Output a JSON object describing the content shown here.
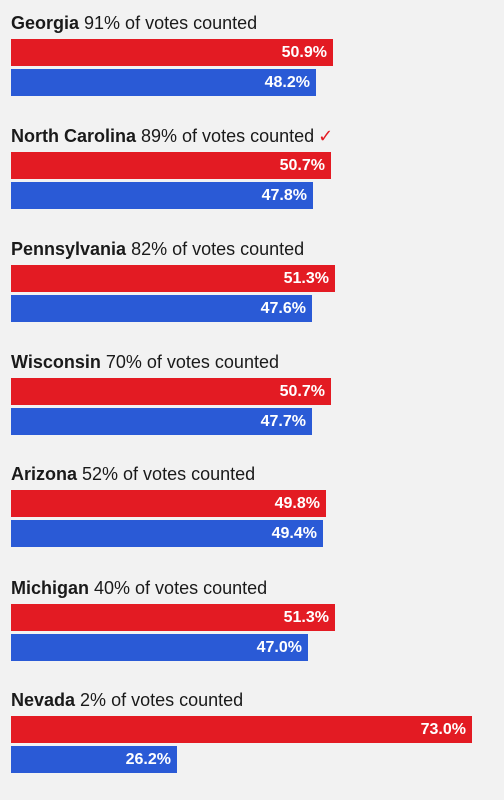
{
  "chart_data": {
    "type": "bar",
    "title": "",
    "xlim": [
      0,
      75
    ],
    "colors": {
      "republican": "#e31b23",
      "democrat": "#2a5ad6"
    },
    "states": [
      {
        "name": "Georgia",
        "counted": "91% of votes counted",
        "called": false,
        "rep": 50.9,
        "dem": 48.2,
        "rep_label": "50.9%",
        "dem_label": "48.2%"
      },
      {
        "name": "North Carolina",
        "counted": "89% of votes counted",
        "called": true,
        "called_mark": "✓",
        "rep": 50.7,
        "dem": 47.8,
        "rep_label": "50.7%",
        "dem_label": "47.8%"
      },
      {
        "name": "Pennsylvania",
        "counted": "82% of votes counted",
        "called": false,
        "rep": 51.3,
        "dem": 47.6,
        "rep_label": "51.3%",
        "dem_label": "47.6%"
      },
      {
        "name": "Wisconsin",
        "counted": "70% of votes counted",
        "called": false,
        "rep": 50.7,
        "dem": 47.7,
        "rep_label": "50.7%",
        "dem_label": "47.7%"
      },
      {
        "name": "Arizona",
        "counted": "52% of votes counted",
        "called": false,
        "rep": 49.8,
        "dem": 49.4,
        "rep_label": "49.8%",
        "dem_label": "49.4%"
      },
      {
        "name": "Michigan",
        "counted": "40% of votes counted",
        "called": false,
        "rep": 51.3,
        "dem": 47.0,
        "rep_label": "51.3%",
        "dem_label": "47.0%"
      },
      {
        "name": "Nevada",
        "counted": "2% of votes counted",
        "called": false,
        "rep": 73.0,
        "dem": 26.2,
        "rep_label": "73.0%",
        "dem_label": "26.2%"
      }
    ]
  }
}
